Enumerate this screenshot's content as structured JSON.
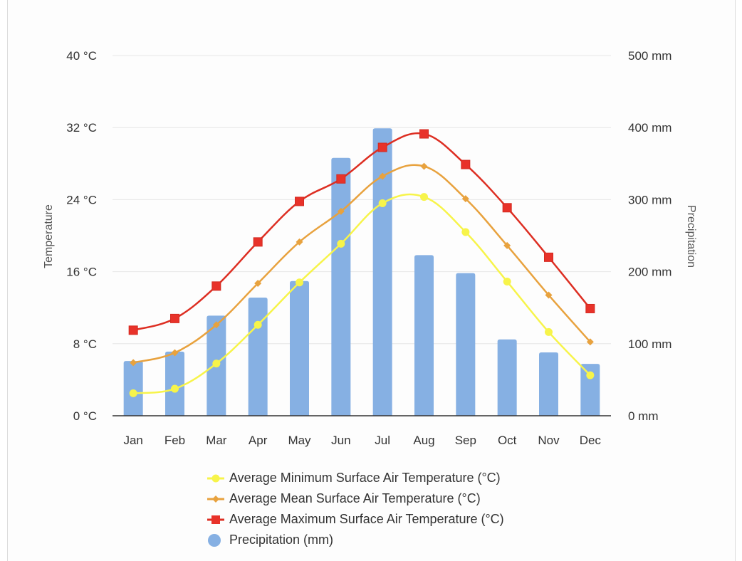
{
  "chart_data": {
    "type": "bar+line",
    "title": "",
    "categories": [
      "Jan",
      "Feb",
      "Mar",
      "Apr",
      "May",
      "Jun",
      "Jul",
      "Aug",
      "Sep",
      "Oct",
      "Nov",
      "Dec"
    ],
    "series": [
      {
        "name": "Average Minimum Surface Air Temperature (°C)",
        "type": "line",
        "axis": "left",
        "color": "#f7f44a",
        "marker": "circle",
        "values": [
          2.5,
          3.0,
          5.8,
          10.1,
          14.8,
          19.1,
          23.6,
          24.3,
          20.4,
          14.9,
          9.3,
          4.5
        ]
      },
      {
        "name": "Average Mean Surface Air Temperature (°C)",
        "type": "line",
        "axis": "left",
        "color": "#e8a23e",
        "marker": "diamond",
        "values": [
          5.9,
          7.0,
          10.1,
          14.7,
          19.3,
          22.7,
          26.6,
          27.7,
          24.1,
          18.9,
          13.4,
          8.2
        ]
      },
      {
        "name": "Average Maximum Surface Air Temperature (°C)",
        "type": "line",
        "axis": "left",
        "color": "#dd2e22",
        "marker": "square",
        "values": [
          9.5,
          10.8,
          14.4,
          19.3,
          23.8,
          26.3,
          29.8,
          31.3,
          27.9,
          23.1,
          17.6,
          11.9
        ]
      },
      {
        "name": "Precipitation (mm)",
        "type": "bar",
        "axis": "right",
        "color": "#86b0e3",
        "marker": "circle",
        "values": [
          76,
          89,
          139,
          164,
          187,
          358,
          399,
          223,
          198,
          106,
          88,
          72
        ]
      }
    ],
    "left_axis": {
      "label": "Temperature",
      "range": [
        0,
        40
      ],
      "ticks": [
        0,
        8,
        16,
        24,
        32,
        40
      ],
      "tick_labels": [
        "0 °C",
        "8 °C",
        "16 °C",
        "24 °C",
        "32 °C",
        "40 °C"
      ]
    },
    "right_axis": {
      "label": "Precipitation",
      "range": [
        0,
        500
      ],
      "ticks": [
        0,
        100,
        200,
        300,
        400,
        500
      ],
      "tick_labels": [
        "0 mm",
        "100 mm",
        "200 mm",
        "300 mm",
        "400 mm",
        "500 mm"
      ]
    },
    "grid": true,
    "legend_position": "bottom"
  }
}
